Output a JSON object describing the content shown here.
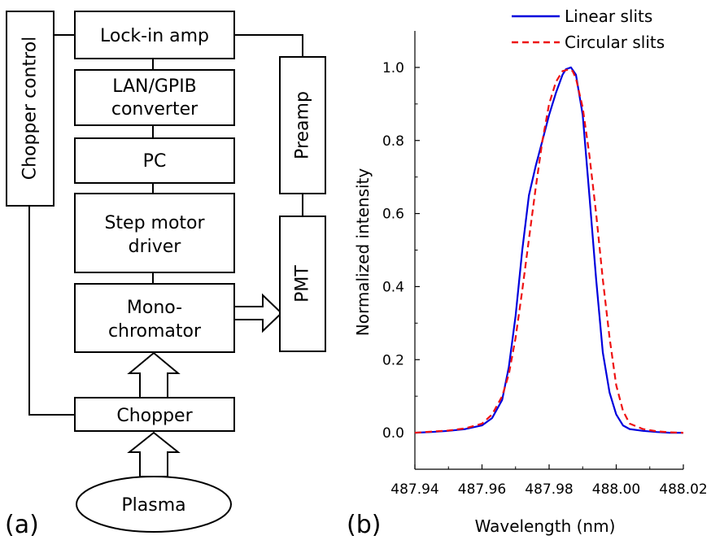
{
  "panel_a": {
    "label": "(a)",
    "blocks": {
      "chopper_control": "Chopper control",
      "lockin": "Lock-in amp",
      "lan_line1": "LAN/GPIB",
      "lan_line2": "converter",
      "pc": "PC",
      "step_line1": "Step motor",
      "step_line2": "driver",
      "mono_line1": "Mono-",
      "mono_line2": "chromator",
      "preamp": "Preamp",
      "pmt": "PMT",
      "chopper": "Chopper",
      "plasma": "Plasma"
    }
  },
  "panel_b": {
    "label": "(b)"
  },
  "chart_data": {
    "type": "line",
    "title": "",
    "xlabel": "Wavelength (nm)",
    "ylabel": "Normalized intensity",
    "xlim": [
      487.94,
      488.02
    ],
    "ylim": [
      -0.1,
      1.1
    ],
    "xticks": [
      487.94,
      487.96,
      487.98,
      488.0,
      488.02
    ],
    "xtick_labels": [
      "487.94",
      "487.96",
      "487.98",
      "488.00",
      "488.02"
    ],
    "yticks": [
      0.0,
      0.2,
      0.4,
      0.6,
      0.8,
      1.0
    ],
    "ytick_labels": [
      "0.0",
      "0.2",
      "0.4",
      "0.6",
      "0.8",
      "1.0"
    ],
    "grid": false,
    "legend_position": "top-right",
    "series": [
      {
        "name": "Linear slits",
        "color": "#0000dd",
        "dash": "solid",
        "x": [
          487.94,
          487.945,
          487.95,
          487.955,
          487.96,
          487.963,
          487.966,
          487.968,
          487.97,
          487.972,
          487.974,
          487.976,
          487.978,
          487.98,
          487.982,
          487.984,
          487.985,
          487.9865,
          487.988,
          487.99,
          487.992,
          487.994,
          487.996,
          487.998,
          488.0,
          488.002,
          488.004,
          488.008,
          488.012,
          488.016,
          488.02
        ],
        "y": [
          0.0,
          0.002,
          0.005,
          0.01,
          0.02,
          0.04,
          0.09,
          0.18,
          0.32,
          0.5,
          0.65,
          0.73,
          0.8,
          0.87,
          0.93,
          0.98,
          0.995,
          1.0,
          0.98,
          0.87,
          0.65,
          0.42,
          0.22,
          0.11,
          0.05,
          0.02,
          0.01,
          0.005,
          0.002,
          0.0,
          0.0
        ]
      },
      {
        "name": "Circular slits",
        "color": "#ee1111",
        "dash": "dashed",
        "x": [
          487.94,
          487.945,
          487.95,
          487.955,
          487.96,
          487.963,
          487.966,
          487.968,
          487.97,
          487.972,
          487.974,
          487.976,
          487.978,
          487.98,
          487.982,
          487.984,
          487.986,
          487.987,
          487.988,
          487.99,
          487.992,
          487.994,
          487.996,
          487.998,
          488.0,
          488.002,
          488.004,
          488.008,
          488.012,
          488.016,
          488.02
        ],
        "y": [
          0.0,
          0.003,
          0.006,
          0.012,
          0.025,
          0.05,
          0.1,
          0.16,
          0.26,
          0.39,
          0.53,
          0.67,
          0.8,
          0.9,
          0.96,
          0.99,
          0.995,
          0.99,
          0.97,
          0.89,
          0.76,
          0.6,
          0.42,
          0.26,
          0.13,
          0.06,
          0.025,
          0.01,
          0.004,
          0.001,
          0.0
        ]
      }
    ]
  }
}
